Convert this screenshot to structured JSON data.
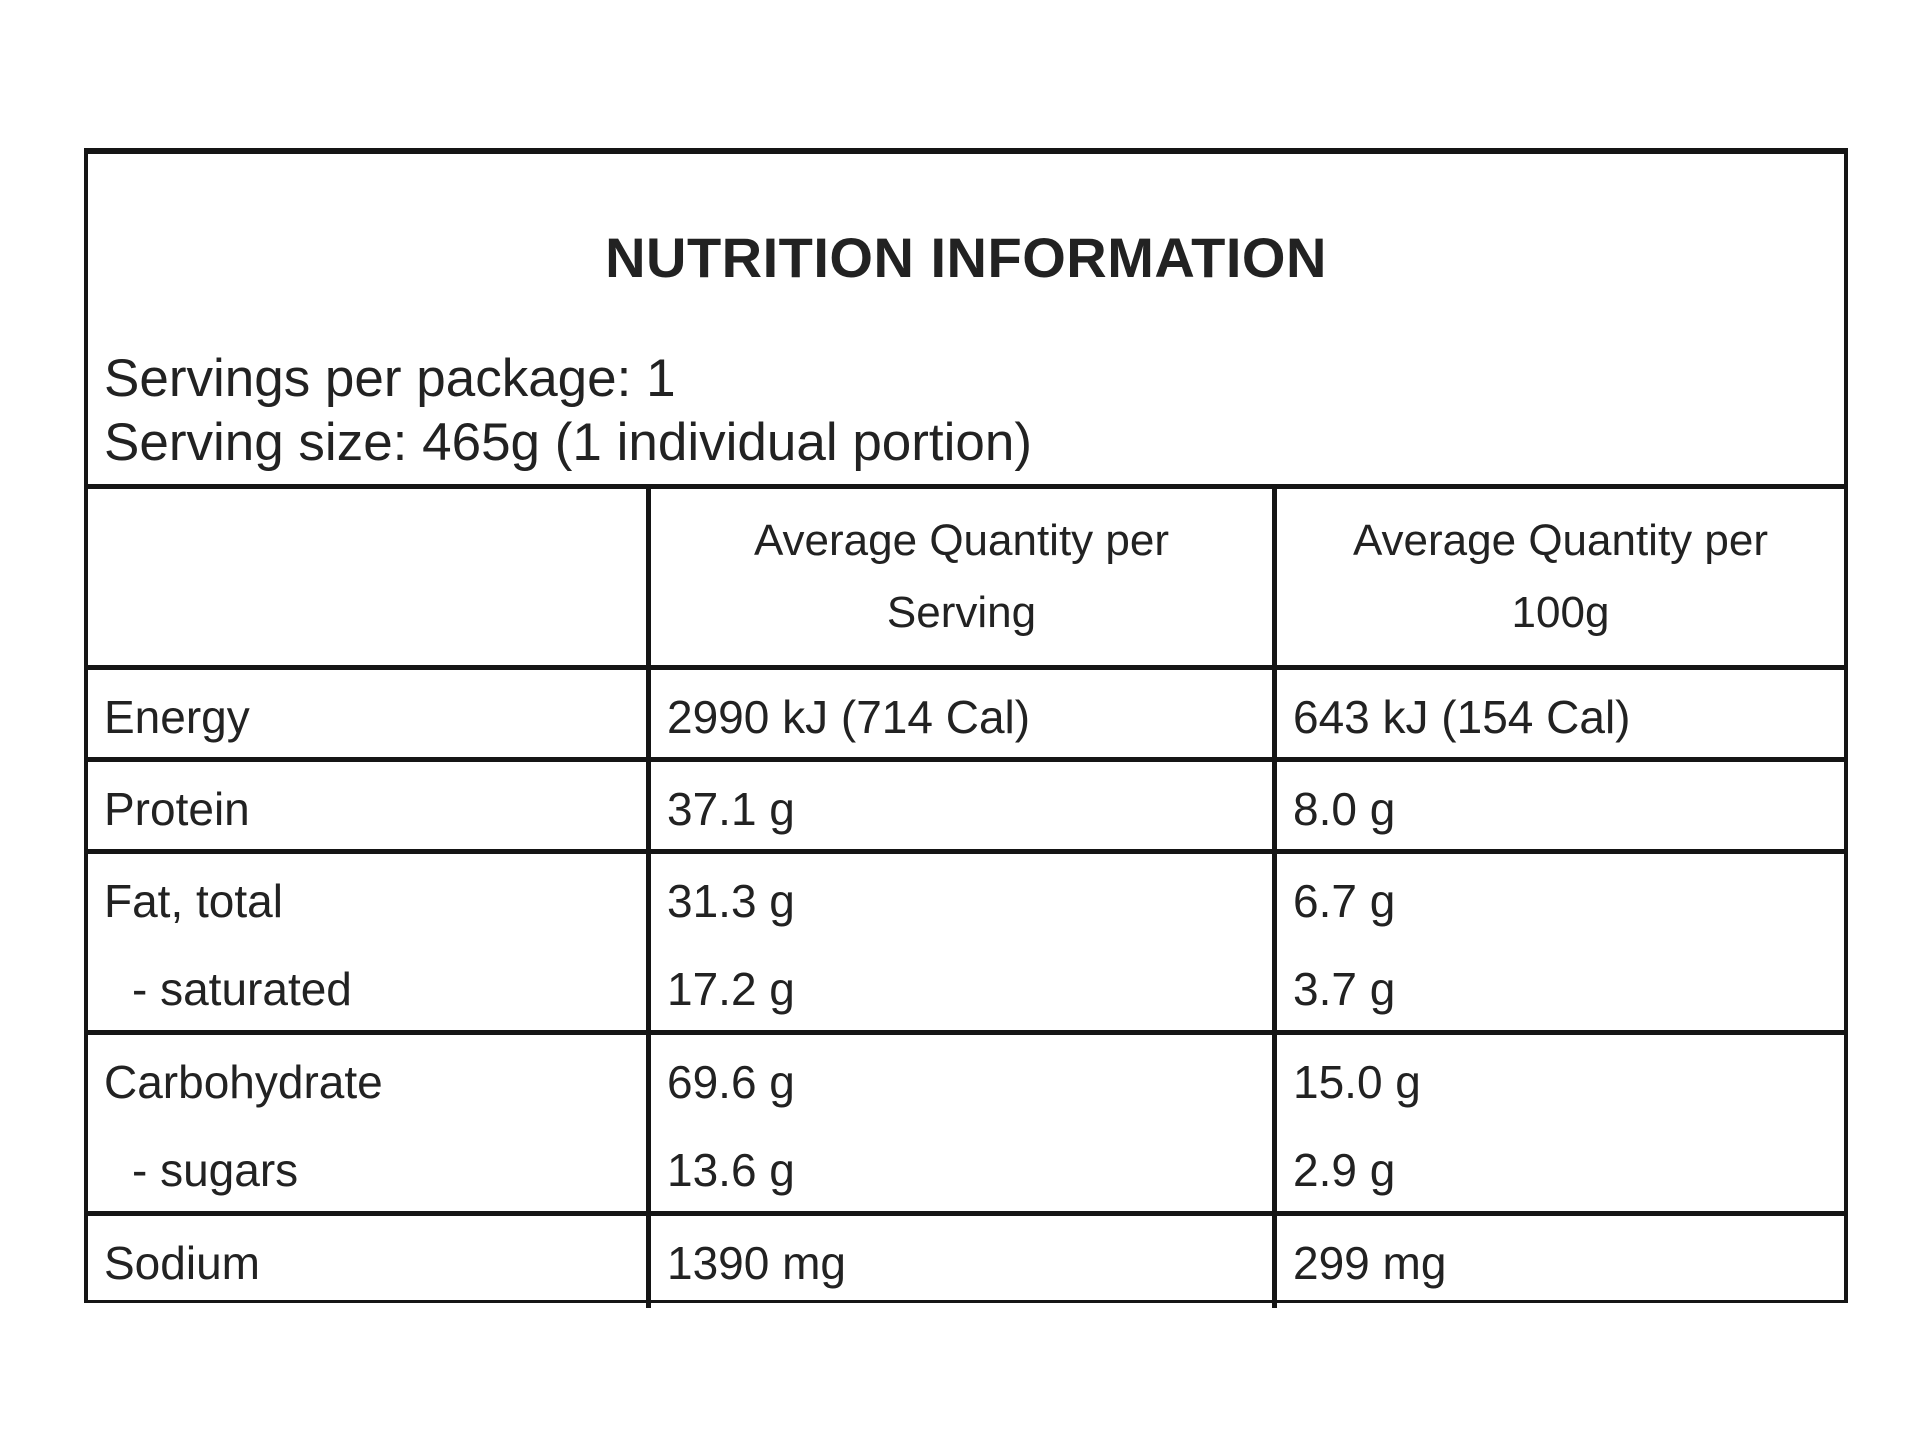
{
  "title": "NUTRITION INFORMATION",
  "servings_per_package": "Servings per package: 1",
  "serving_size": "Serving size: 465g (1 individual portion)",
  "columns": {
    "per_serving": "Average Quantity per Serving",
    "per_100g": "Average Quantity per 100g"
  },
  "rows": [
    {
      "lines": [
        {
          "label": "Energy",
          "per_serving": "2990 kJ (714 Cal)",
          "per_100g": "643 kJ (154 Cal)"
        }
      ]
    },
    {
      "lines": [
        {
          "label": "Protein",
          "per_serving": "37.1 g",
          "per_100g": "8.0 g"
        }
      ]
    },
    {
      "lines": [
        {
          "label": "Fat, total",
          "per_serving": "31.3 g",
          "per_100g": "6.7 g"
        },
        {
          "label": "- saturated",
          "per_serving": "17.2 g",
          "per_100g": "3.7 g"
        }
      ]
    },
    {
      "lines": [
        {
          "label": "Carbohydrate",
          "per_serving": "69.6 g",
          "per_100g": "15.0 g"
        },
        {
          "label": "- sugars",
          "per_serving": "13.6 g",
          "per_100g": "2.9 g"
        }
      ]
    },
    {
      "lines": [
        {
          "label": "Sodium",
          "per_serving": "1390 mg",
          "per_100g": "299 mg"
        }
      ]
    }
  ]
}
